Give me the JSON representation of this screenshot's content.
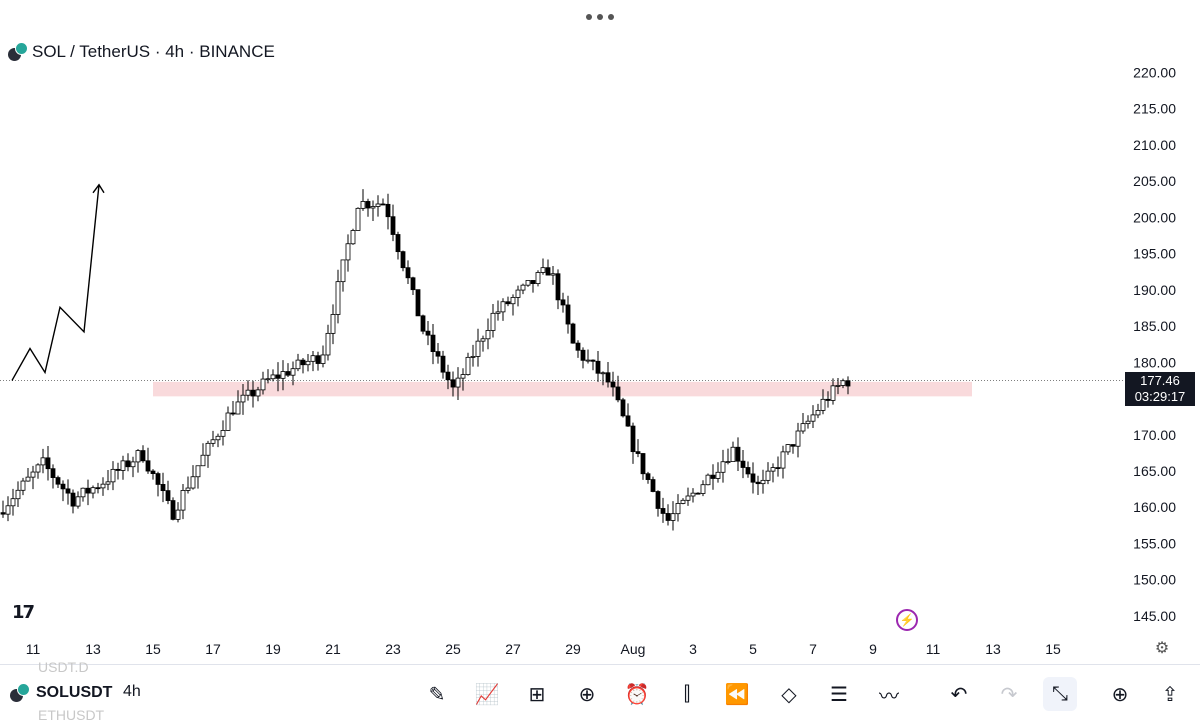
{
  "header": {
    "title": "SOL / TetherUS · 4h · BINANCE"
  },
  "colors": {
    "up": "#ffffff",
    "down": "#000000",
    "zone": "#f8d3d6",
    "text": "#131722"
  },
  "price_label": {
    "price": "177.46",
    "countdown": "03:29:17"
  },
  "toolbar": {
    "ghost_top": "USDT.D",
    "symbol": "SOLUSDT",
    "interval": "4h",
    "ghost_bottom": "ETHUSDT",
    "tools": [
      {
        "name": "pencil-icon",
        "glyph": "✎"
      },
      {
        "name": "indicators-icon",
        "glyph": "📈"
      },
      {
        "name": "grid-icon",
        "glyph": "⊞"
      },
      {
        "name": "add-icon",
        "glyph": "⊕"
      },
      {
        "name": "alarm-icon",
        "glyph": "⏰"
      },
      {
        "name": "candles-icon",
        "glyph": "⫿"
      },
      {
        "name": "rewind-icon",
        "glyph": "⏪"
      },
      {
        "name": "layers-icon",
        "glyph": "◇"
      },
      {
        "name": "settings-sliders-icon",
        "glyph": "☰"
      },
      {
        "name": "trend-icon",
        "glyph": "〰"
      },
      {
        "name": "undo-icon",
        "glyph": "↶"
      },
      {
        "name": "redo-icon",
        "glyph": "↷"
      },
      {
        "name": "collapse-icon",
        "glyph": "⤡"
      },
      {
        "name": "add-chart-icon",
        "glyph": "⊕"
      },
      {
        "name": "share-icon",
        "glyph": "⇪"
      }
    ]
  },
  "chart_data": {
    "type": "candlestick",
    "symbol": "SOL / TetherUS",
    "timeframe": "4h",
    "exchange": "BINANCE",
    "ylim": [
      141.5,
      224.5
    ],
    "y_ticks": [
      "145.00",
      "150.00",
      "155.00",
      "160.00",
      "165.00",
      "170.00",
      "175.00",
      "180.00",
      "185.00",
      "190.00",
      "195.00",
      "200.00",
      "205.00",
      "210.00",
      "215.00",
      "220.00"
    ],
    "x_ticks": [
      "11",
      "13",
      "15",
      "17",
      "19",
      "21",
      "23",
      "25",
      "27",
      "29",
      "Aug",
      "3",
      "5",
      "7",
      "9",
      "11",
      "13",
      "15"
    ],
    "last_price": 177.46,
    "support_zone": [
      175.3,
      177.3
    ],
    "projection": [
      {
        "day": 10.3,
        "price": 177.5
      },
      {
        "day": 10.9,
        "price": 181.9
      },
      {
        "day": 11.4,
        "price": 178.6
      },
      {
        "day": 11.9,
        "price": 187.6
      },
      {
        "day": 12.7,
        "price": 184.2
      },
      {
        "day": 13.2,
        "price": 204.5
      }
    ],
    "candles_daily_path": [
      {
        "day": 9.9,
        "o": 158,
        "h": 160,
        "l": 156,
        "c": 158.8
      },
      {
        "day": 11.5,
        "o": 162.5,
        "h": 168,
        "l": 161,
        "c": 166
      },
      {
        "day": 12.5,
        "o": 163,
        "h": 164.5,
        "l": 159.2,
        "c": 161
      },
      {
        "day": 13.5,
        "o": 162,
        "h": 164.8,
        "l": 160.5,
        "c": 163.5
      },
      {
        "day": 14.8,
        "o": 165,
        "h": 168.5,
        "l": 162,
        "c": 167.5
      },
      {
        "day": 15.8,
        "o": 163,
        "h": 164.5,
        "l": 158,
        "c": 159
      },
      {
        "day": 16.7,
        "o": 165,
        "h": 167,
        "l": 163,
        "c": 166
      },
      {
        "day": 17.8,
        "o": 173,
        "h": 175.5,
        "l": 168.5,
        "c": 173.5
      },
      {
        "day": 19,
        "o": 176,
        "h": 180.5,
        "l": 175.5,
        "c": 177.5
      },
      {
        "day": 20.8,
        "o": 177,
        "h": 183,
        "l": 176.5,
        "c": 181
      },
      {
        "day": 22,
        "o": 200,
        "h": 204.8,
        "l": 196,
        "c": 202
      },
      {
        "day": 22.9,
        "o": 204,
        "h": 206,
        "l": 199,
        "c": 202
      },
      {
        "day": 24.2,
        "o": 188,
        "h": 191,
        "l": 178.5,
        "c": 184
      },
      {
        "day": 25.2,
        "o": 177,
        "h": 181.5,
        "l": 175.5,
        "c": 176
      },
      {
        "day": 26.5,
        "o": 186,
        "h": 188.5,
        "l": 183.5,
        "c": 186.5
      },
      {
        "day": 28.4,
        "o": 193,
        "h": 195.4,
        "l": 186,
        "c": 193
      },
      {
        "day": 29.2,
        "o": 183,
        "h": 188,
        "l": 180,
        "c": 182
      },
      {
        "day": 30.4,
        "o": 176,
        "h": 182.5,
        "l": 169,
        "c": 177
      },
      {
        "day": 31.3,
        "o": 172,
        "h": 174,
        "l": 165.5,
        "c": 167
      },
      {
        "day": 32.3,
        "o": 160,
        "h": 162,
        "l": 155.9,
        "c": 158
      },
      {
        "day": 33.2,
        "o": 161.5,
        "h": 163,
        "l": 159.5,
        "c": 162
      },
      {
        "day": 34.5,
        "o": 170,
        "h": 171.7,
        "l": 165,
        "c": 168
      },
      {
        "day": 35.4,
        "o": 163,
        "h": 165,
        "l": 161.5,
        "c": 162.5
      },
      {
        "day": 36.5,
        "o": 168,
        "h": 170.5,
        "l": 166,
        "c": 169
      },
      {
        "day": 37.5,
        "o": 174,
        "h": 177,
        "l": 172,
        "c": 174.5
      },
      {
        "day": 38.2,
        "o": 176.5,
        "h": 179.4,
        "l": 176,
        "c": 177.46
      }
    ]
  }
}
